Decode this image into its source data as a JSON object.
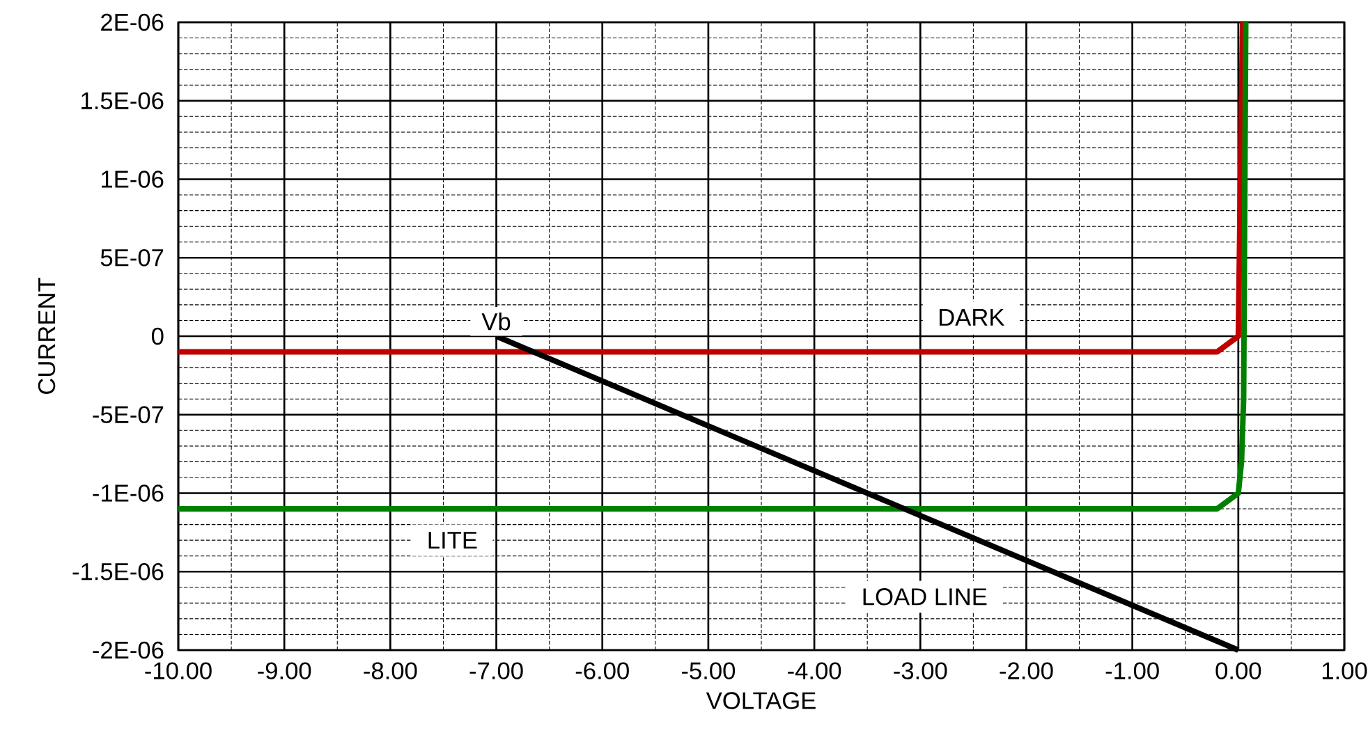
{
  "chart_data": {
    "type": "line",
    "xlabel": "VOLTAGE",
    "ylabel": "CURRENT",
    "xlim": [
      -10,
      1
    ],
    "ylim": [
      -2e-06,
      2e-06
    ],
    "xticks": [
      {
        "value": -10,
        "label": "-10.00"
      },
      {
        "value": -9,
        "label": "-9.00"
      },
      {
        "value": -8,
        "label": "-8.00"
      },
      {
        "value": -7,
        "label": "-7.00"
      },
      {
        "value": -6,
        "label": "-6.00"
      },
      {
        "value": -5,
        "label": "-5.00"
      },
      {
        "value": -4,
        "label": "-4.00"
      },
      {
        "value": -3,
        "label": "-3.00"
      },
      {
        "value": -2,
        "label": "-2.00"
      },
      {
        "value": -1,
        "label": "-1.00"
      },
      {
        "value": 0,
        "label": "0.00"
      },
      {
        "value": 1,
        "label": "1.00"
      }
    ],
    "yticks": [
      {
        "value": 2e-06,
        "label": "2E-06"
      },
      {
        "value": 1.5e-06,
        "label": "1.5E-06"
      },
      {
        "value": 1e-06,
        "label": "1E-06"
      },
      {
        "value": 5e-07,
        "label": "5E-07"
      },
      0,
      {
        "value": -5e-07,
        "label": "-5E-07"
      },
      {
        "value": -1e-06,
        "label": "-1E-06"
      },
      {
        "value": -1.5e-06,
        "label": "-1.5E-06"
      },
      {
        "value": -2e-06,
        "label": "-2E-06"
      }
    ],
    "grid": true,
    "series": [
      {
        "name": "DARK",
        "color": "#c00000",
        "x": [
          -10,
          -0.2,
          0,
          0.04
        ],
        "values": [
          -1e-07,
          -1e-07,
          0,
          2e-06
        ]
      },
      {
        "name": "LITE",
        "color": "#008000",
        "x": [
          -10,
          -0.2,
          0,
          0.03,
          0.05,
          0.07
        ],
        "values": [
          -1.1e-06,
          -1.1e-06,
          -1e-06,
          -8e-07,
          -4e-07,
          2e-06
        ]
      },
      {
        "name": "LOAD LINE",
        "color": "#000000",
        "x": [
          -7,
          0
        ],
        "values": [
          0,
          -2e-06
        ]
      }
    ],
    "annotations": [
      "Vb"
    ]
  }
}
